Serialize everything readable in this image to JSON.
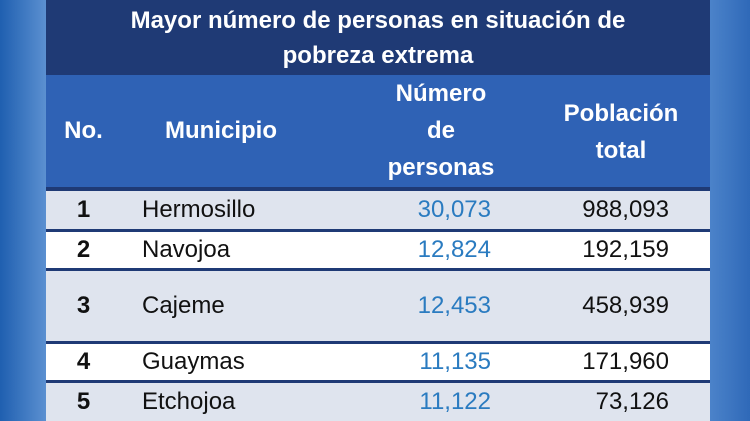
{
  "title_line1": "Mayor número de personas en situación de",
  "title_line2": "pobreza extrema",
  "headers": {
    "no": "No.",
    "municipio": "Municipio",
    "numero_line1": "Número",
    "numero_line2": "de",
    "numero_line3": "personas",
    "poblacion_line1": "Población",
    "poblacion_line2": "total"
  },
  "rows": [
    {
      "no": "1",
      "municipio": "Hermosillo",
      "numero": "30,073",
      "poblacion": "988,093"
    },
    {
      "no": "2",
      "municipio": "Navojoa",
      "numero": "12,824",
      "poblacion": "192,159"
    },
    {
      "no": "3",
      "municipio": "Cajeme",
      "numero": "12,453",
      "poblacion": "458,939"
    },
    {
      "no": "4",
      "municipio": "Guaymas",
      "numero": "11,135",
      "poblacion": "171,960"
    },
    {
      "no": "5",
      "municipio": "Etchojoa",
      "numero": "11,122",
      "poblacion": "73,126"
    }
  ],
  "colors": {
    "title_bg": "#1f3a75",
    "header_bg": "#2f62b5",
    "number_text": "#2a7bc0",
    "row_alt": "#dfe4ee"
  }
}
